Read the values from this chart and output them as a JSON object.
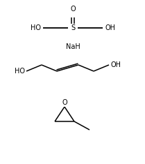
{
  "bg_color": "#ffffff",
  "text_color": "#000000",
  "line_color": "#000000",
  "fontsize": 7.0,
  "font_family": "Arial",
  "NaH_text": "NaH",
  "O_label": "O",
  "S_label": "S",
  "HO_left": "HO",
  "OH_right": "OH",
  "HO_diol": "HO",
  "OH_diol": "OH",
  "O_epoxide": "O",
  "lw": 1.1
}
